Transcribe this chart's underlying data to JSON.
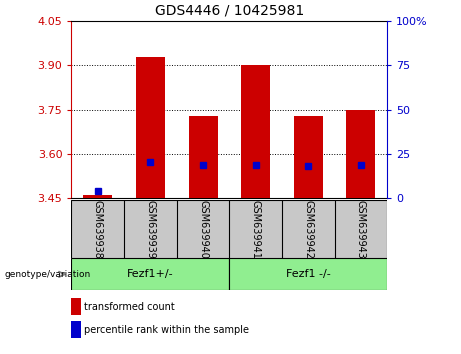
{
  "title": "GDS4446 / 10425981",
  "categories": [
    "GSM639938",
    "GSM639939",
    "GSM639940",
    "GSM639941",
    "GSM639942",
    "GSM639943"
  ],
  "bar_bottoms": [
    3.45,
    3.45,
    3.45,
    3.45,
    3.45,
    3.45
  ],
  "bar_tops": [
    3.462,
    3.93,
    3.73,
    3.9,
    3.73,
    3.75
  ],
  "blue_vals": [
    3.473,
    3.573,
    3.562,
    3.563,
    3.56,
    3.562
  ],
  "ylim_left": [
    3.45,
    4.05
  ],
  "ylim_right": [
    0,
    100
  ],
  "yticks_left": [
    3.45,
    3.6,
    3.75,
    3.9,
    4.05
  ],
  "yticks_right": [
    0,
    25,
    50,
    75,
    100
  ],
  "yticklabels_right": [
    "0",
    "25",
    "50",
    "75",
    "100%"
  ],
  "bar_color": "#cc0000",
  "blue_color": "#0000cc",
  "group1_label": "Fezf1+/-",
  "group2_label": "Fezf1 -/-",
  "group1_indices": [
    0,
    1,
    2
  ],
  "group2_indices": [
    3,
    4,
    5
  ],
  "genotype_label": "genotype/variation",
  "legend_red": "transformed count",
  "legend_blue": "percentile rank within the sample",
  "bar_width": 0.55,
  "green_color": "#90ee90",
  "gray_color": "#c8c8c8",
  "bg_color": "#ffffff",
  "tick_color_left": "#cc0000",
  "tick_color_right": "#0000cc",
  "grid_yticks": [
    3.6,
    3.75,
    3.9
  ],
  "title_fontsize": 10,
  "tick_fontsize": 8,
  "label_fontsize": 7,
  "group_fontsize": 8
}
